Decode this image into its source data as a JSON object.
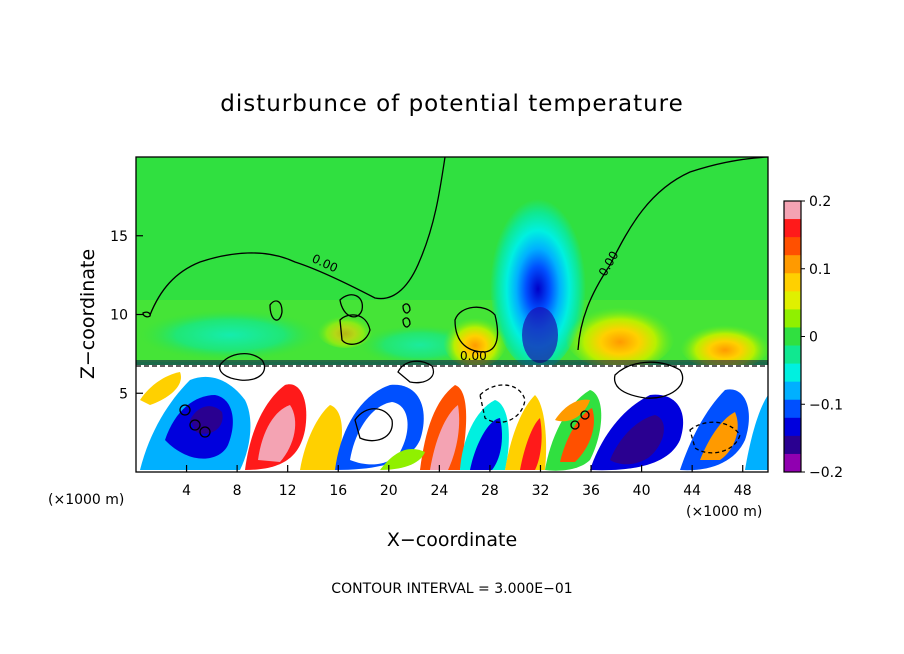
{
  "chart_data": {
    "type": "heatmap",
    "title": "disturbunce of potential temperature",
    "xlabel": "X−coordinate",
    "ylabel": "Z−coordinate",
    "x_unit_left": "(×1000 m)",
    "x_unit_right": "(×1000 m)",
    "xlim": [
      0,
      50
    ],
    "ylim": [
      0,
      20
    ],
    "x_ticks": [
      4,
      8,
      12,
      16,
      20,
      24,
      28,
      32,
      36,
      40,
      44,
      48
    ],
    "x_tick_labels": [
      "4",
      "8",
      "12",
      "16",
      "20",
      "24",
      "28",
      "32",
      "36",
      "40",
      "44",
      "48"
    ],
    "y_ticks": [
      5,
      10,
      15
    ],
    "y_tick_labels": [
      "5",
      "10",
      "15"
    ],
    "colorbar": {
      "range": [
        -0.2,
        0.2
      ],
      "ticks": [
        0.2,
        0.1,
        0,
        -0.1,
        -0.2
      ],
      "tick_labels": [
        "0.2",
        "0.1",
        "0",
        "−0.1",
        "−0.2"
      ],
      "colors": [
        "#f4a3b3",
        "#ff1a1a",
        "#ff5000",
        "#ff9a00",
        "#ffd000",
        "#e0f000",
        "#90f000",
        "#30e040",
        "#10e890",
        "#00f0e0",
        "#00b0ff",
        "#0050ff",
        "#0000dd",
        "#2a0090",
        "#9000b0"
      ]
    },
    "contour_labels": [
      "0.00",
      "0.00",
      "0.00"
    ],
    "contour_interval_text": "CONTOUR INTERVAL = 3.000E−01",
    "regions": {
      "inversion_height_z": 7,
      "cool_plume_center_x": 32,
      "cool_plume_top_z": 17,
      "warm_blobs": [
        {
          "x": 27,
          "z": 9
        },
        {
          "x": 40,
          "z": 8.5
        },
        {
          "x": 46,
          "z": 8
        }
      ]
    }
  }
}
